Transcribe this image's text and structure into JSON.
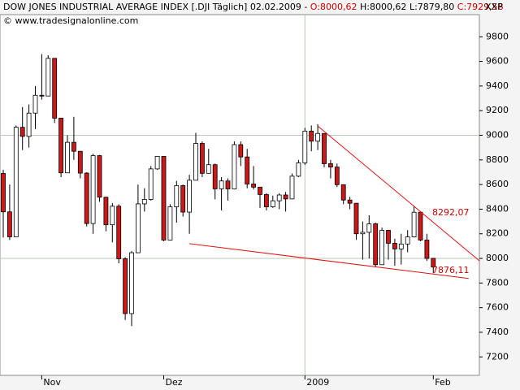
{
  "chart_data": {
    "type": "candlestick",
    "title": "DOW JONES INDUSTRIAL AVERAGE INDEX [.DJI  Täglich] 02.02.2009 -",
    "ohlc_text": {
      "open": "O:8000,62",
      "high": "H:8000,62",
      "low": "L:7879,80",
      "close": "C:7929,58"
    },
    "exchange": "XXP",
    "copyright": "© www.tradesignalonline.com",
    "categories": [
      null,
      null,
      null,
      null,
      null,
      null,
      "Nov",
      null,
      null,
      null,
      null,
      null,
      null,
      null,
      null,
      null,
      null,
      null,
      null,
      null,
      null,
      null,
      null,
      null,
      null,
      "Dez",
      null,
      null,
      null,
      null,
      null,
      null,
      null,
      null,
      null,
      null,
      null,
      null,
      null,
      null,
      null,
      null,
      null,
      null,
      null,
      null,
      null,
      "2009",
      null,
      null,
      null,
      null,
      null,
      null,
      null,
      null,
      null,
      null,
      null,
      null,
      null,
      null,
      null,
      null,
      null,
      null,
      null,
      "Feb"
    ],
    "open": [
      8690,
      8378,
      8175,
      9065,
      8991,
      9180,
      9325,
      9319,
      9625,
      9139,
      8695,
      8943,
      8870,
      8693,
      8283,
      8835,
      8497,
      8273,
      8424,
      7997,
      7552,
      8046,
      8443,
      8479,
      8727,
      8829,
      8149,
      8419,
      8591,
      8376,
      8635,
      8934,
      8691,
      8761,
      8565,
      8629,
      8564,
      8924,
      8824,
      8604,
      8579,
      8519,
      8419,
      8468,
      8515,
      8483,
      8668,
      8776,
      9034,
      8952,
      9015,
      8769,
      8742,
      8599,
      8474,
      8448,
      8200,
      8212,
      8281,
      7949,
      8228,
      8123,
      8077,
      8117,
      8175,
      8375,
      8149,
      8000.62
    ],
    "high": [
      8720,
      8600,
      9080,
      9230,
      9250,
      9400,
      9660,
      9650,
      9625,
      9139,
      9000,
      9150,
      8870,
      8700,
      8850,
      8840,
      8500,
      8450,
      8440,
      8010,
      8060,
      8600,
      8570,
      8750,
      8830,
      8830,
      8440,
      8630,
      8600,
      8680,
      9020,
      8950,
      8890,
      8770,
      8660,
      8650,
      8950,
      8950,
      8890,
      8750,
      8580,
      8530,
      8510,
      8530,
      8540,
      8690,
      8800,
      9060,
      9080,
      9090,
      9015,
      8800,
      8770,
      8600,
      8500,
      8450,
      8300,
      8350,
      8290,
      8250,
      8230,
      8160,
      8200,
      8230,
      8420,
      8380,
      8200,
      8000.62
    ],
    "low": [
      8170,
      8150,
      8175,
      8880,
      8900,
      9050,
      9290,
      9319,
      9100,
      8660,
      8695,
      8800,
      8650,
      8260,
      8200,
      8460,
      8220,
      8130,
      7960,
      7500,
      7450,
      8046,
      8380,
      8470,
      8720,
      8140,
      8149,
      8290,
      8340,
      8200,
      8635,
      8660,
      8690,
      8480,
      8390,
      8470,
      8560,
      8750,
      8570,
      8560,
      8410,
      8390,
      8410,
      8400,
      8380,
      8480,
      8660,
      8760,
      8870,
      8880,
      8740,
      8650,
      8580,
      8440,
      8400,
      8150,
      7990,
      8000,
      7930,
      7950,
      7990,
      7940,
      7950,
      8050,
      8170,
      8140,
      7980,
      7879.8
    ],
    "close": [
      8378,
      8175,
      9065,
      8991,
      9180,
      9325,
      9319,
      9625,
      9139,
      8695,
      8943,
      8870,
      8693,
      8283,
      8835,
      8497,
      8273,
      8424,
      7997,
      7552,
      8046,
      8443,
      8479,
      8727,
      8829,
      8149,
      8419,
      8591,
      8376,
      8635,
      8934,
      8691,
      8761,
      8565,
      8629,
      8564,
      8924,
      8824,
      8604,
      8579,
      8519,
      8419,
      8468,
      8515,
      8483,
      8668,
      8776,
      9034,
      8952,
      9015,
      8769,
      8742,
      8599,
      8474,
      8448,
      8200,
      8212,
      8281,
      7949,
      8228,
      8123,
      8077,
      8117,
      8175,
      8375,
      8149,
      8000,
      7929.58
    ],
    "up_color": "#ffffff",
    "down_color": "#cc1818",
    "trendlines": [
      {
        "x": [
          49,
          74.2
        ],
        "y": [
          9075,
          7980
        ],
        "color": "#e01010"
      },
      {
        "x": [
          29,
          72.5
        ],
        "y": [
          8120,
          7837
        ],
        "color": "#e01010"
      }
    ],
    "annotations": [
      {
        "value": 8292.07,
        "label": "8292,07"
      },
      {
        "value": 7876.11,
        "label": "7876,11"
      }
    ],
    "ylim": [
      7050,
      9980
    ],
    "yticks": [
      7200,
      7400,
      7600,
      7800,
      8000,
      8200,
      8400,
      8600,
      8800,
      9000,
      9200,
      9400,
      9600,
      9800
    ]
  }
}
